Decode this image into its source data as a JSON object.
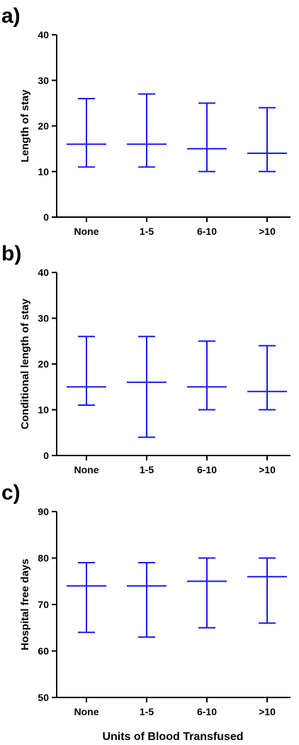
{
  "figure": {
    "xlabel": "Units of Blood Transfused",
    "series_color": "#1a1aee"
  },
  "chart_data": [
    {
      "type": "errorbar",
      "panel_label": "a)",
      "ylabel": "Length of stay",
      "categories": [
        "None",
        "1-5",
        "6-10",
        ">10"
      ],
      "ylim": [
        0,
        40
      ],
      "yticks": [
        0,
        10,
        20,
        30,
        40
      ],
      "series": [
        {
          "median": [
            16,
            16,
            15,
            14
          ],
          "lower": [
            11,
            11,
            10,
            10
          ],
          "upper": [
            26,
            27,
            25,
            24
          ]
        }
      ]
    },
    {
      "type": "errorbar",
      "panel_label": "b)",
      "ylabel": "Conditional length of stay",
      "categories": [
        "None",
        "1-5",
        "6-10",
        ">10"
      ],
      "ylim": [
        0,
        40
      ],
      "yticks": [
        0,
        10,
        20,
        30,
        40
      ],
      "series": [
        {
          "median": [
            15,
            16,
            15,
            14
          ],
          "lower": [
            11,
            4,
            10,
            10
          ],
          "upper": [
            26,
            26,
            25,
            24
          ]
        }
      ]
    },
    {
      "type": "errorbar",
      "panel_label": "c)",
      "ylabel": "Hospital free days",
      "categories": [
        "None",
        "1-5",
        "6-10",
        ">10"
      ],
      "ylim": [
        50,
        90
      ],
      "yticks": [
        50,
        60,
        70,
        80,
        90
      ],
      "series": [
        {
          "median": [
            74,
            74,
            75,
            76
          ],
          "lower": [
            64,
            63,
            65,
            66
          ],
          "upper": [
            79,
            79,
            80,
            80
          ]
        }
      ]
    }
  ]
}
